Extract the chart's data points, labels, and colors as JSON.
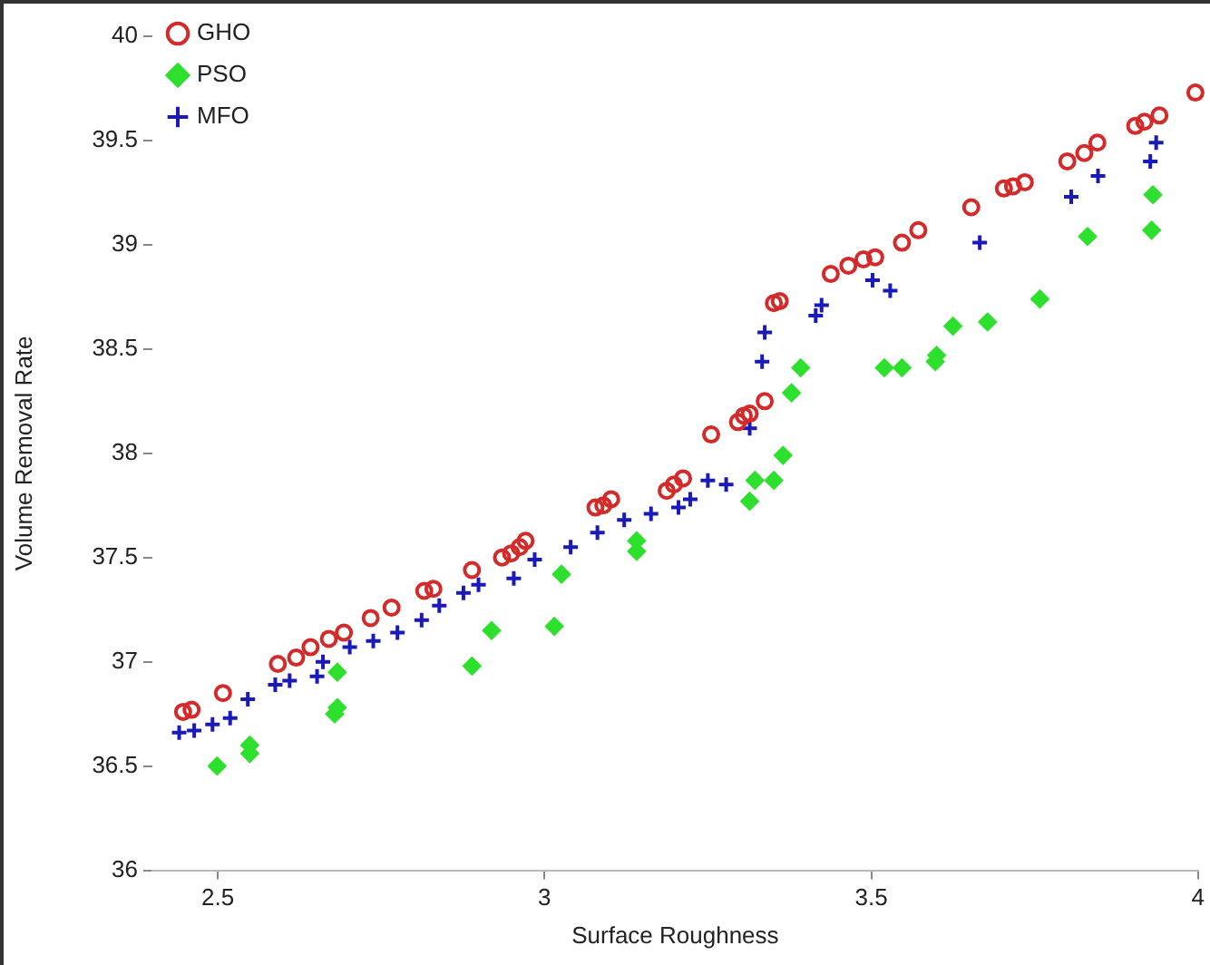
{
  "chart_data": {
    "type": "scatter",
    "xlabel": "Surface Roughness",
    "ylabel": "Volume Removal Rate",
    "xlim": [
      2.4,
      4.0
    ],
    "xticks": [
      2.5,
      3,
      3.5,
      4
    ],
    "ylim": [
      36,
      40
    ],
    "yticks": [
      36,
      36.5,
      37,
      37.5,
      38,
      38.5,
      39,
      39.5,
      40
    ],
    "grid": false,
    "legend": "top left",
    "series": [
      {
        "name": "GHO",
        "color": "#d42a2a",
        "marker": "circle",
        "x": [
          2.447,
          2.46,
          2.508,
          2.592,
          2.62,
          2.642,
          2.67,
          2.693,
          2.734,
          2.766,
          2.816,
          2.83,
          2.889,
          2.935,
          2.949,
          2.962,
          2.971,
          3.078,
          3.09,
          3.102,
          3.187,
          3.198,
          3.212,
          3.255,
          3.296,
          3.305,
          3.314,
          3.337,
          3.351,
          3.36,
          3.438,
          3.465,
          3.488,
          3.506,
          3.547,
          3.572,
          3.653,
          3.703,
          3.717,
          3.735,
          3.8,
          3.826,
          3.846,
          3.904,
          3.918,
          3.941,
          3.996
        ],
        "values": [
          36.76,
          36.77,
          36.85,
          36.99,
          37.02,
          37.07,
          37.11,
          37.14,
          37.21,
          37.26,
          37.34,
          37.35,
          37.44,
          37.5,
          37.52,
          37.55,
          37.58,
          37.74,
          37.75,
          37.78,
          37.82,
          37.85,
          37.88,
          38.09,
          38.15,
          38.18,
          38.19,
          38.25,
          38.72,
          38.73,
          38.86,
          38.9,
          38.93,
          38.94,
          39.01,
          39.07,
          39.18,
          39.27,
          39.28,
          39.3,
          39.4,
          39.44,
          39.49,
          39.57,
          39.59,
          39.62,
          39.73
        ]
      },
      {
        "name": "PSO",
        "color": "#2ee02e",
        "marker": "diamond",
        "x": [
          2.499,
          2.549,
          2.549,
          2.679,
          2.683,
          2.683,
          2.889,
          2.919,
          3.015,
          3.026,
          3.141,
          3.141,
          3.314,
          3.322,
          3.351,
          3.365,
          3.378,
          3.392,
          3.52,
          3.547,
          3.598,
          3.6,
          3.625,
          3.678,
          3.758,
          3.831,
          3.929,
          3.931
        ],
        "values": [
          36.5,
          36.56,
          36.6,
          36.75,
          36.78,
          36.95,
          36.98,
          37.15,
          37.17,
          37.42,
          37.53,
          37.58,
          37.77,
          37.87,
          37.87,
          37.99,
          38.29,
          38.41,
          38.41,
          38.41,
          38.44,
          38.47,
          38.61,
          38.63,
          38.74,
          39.04,
          39.07,
          39.24
        ]
      },
      {
        "name": "MFO",
        "color": "#1a1ab8",
        "marker": "cross",
        "x": [
          2.441,
          2.464,
          2.492,
          2.519,
          2.546,
          2.588,
          2.61,
          2.652,
          2.661,
          2.702,
          2.738,
          2.775,
          2.812,
          2.839,
          2.876,
          2.899,
          2.953,
          2.985,
          3.04,
          3.081,
          3.122,
          3.163,
          3.205,
          3.223,
          3.25,
          3.278,
          3.314,
          3.333,
          3.337,
          3.415,
          3.424,
          3.502,
          3.529,
          3.666,
          3.806,
          3.847,
          3.927,
          3.936
        ],
        "values": [
          36.66,
          36.67,
          36.7,
          36.73,
          36.82,
          36.89,
          36.91,
          36.93,
          37.0,
          37.07,
          37.1,
          37.14,
          37.2,
          37.27,
          37.33,
          37.37,
          37.4,
          37.49,
          37.55,
          37.62,
          37.68,
          37.71,
          37.74,
          37.78,
          37.87,
          37.85,
          38.12,
          38.44,
          38.58,
          38.66,
          38.71,
          38.83,
          38.78,
          39.01,
          39.23,
          39.33,
          39.4,
          39.49
        ]
      }
    ]
  }
}
